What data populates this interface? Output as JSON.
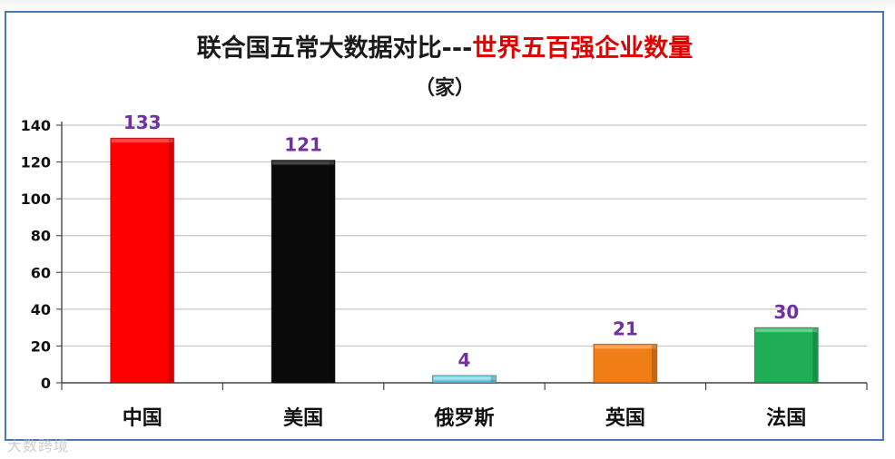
{
  "chart_data": {
    "type": "bar",
    "title_part1": "联合国五常大数据对比---",
    "title_part2": "世界五百强企业数量",
    "subtitle": "（家）",
    "categories": [
      "中国",
      "美国",
      "俄罗斯",
      "英国",
      "法国"
    ],
    "values": [
      133,
      121,
      4,
      21,
      30
    ],
    "ylim": [
      0,
      140
    ],
    "yticks": [
      0,
      20,
      40,
      60,
      80,
      100,
      120,
      140
    ],
    "grid": true,
    "legend": "none",
    "colors": {
      "bars": [
        "#ff0000",
        "#0a0a0a",
        "#5cc6dc",
        "#f07d16",
        "#1fae55"
      ],
      "bar_tops": [
        "#ff4d4d",
        "#4a4a4a",
        "#a6e6f2",
        "#f7a85e",
        "#6ad490"
      ],
      "value_label": "#7030a0",
      "title_black": "#1a1a1a",
      "title_red": "#e00000",
      "frame": "#4a78b4",
      "grid": "#c8c8c8"
    }
  },
  "watermark": "大数跨境"
}
